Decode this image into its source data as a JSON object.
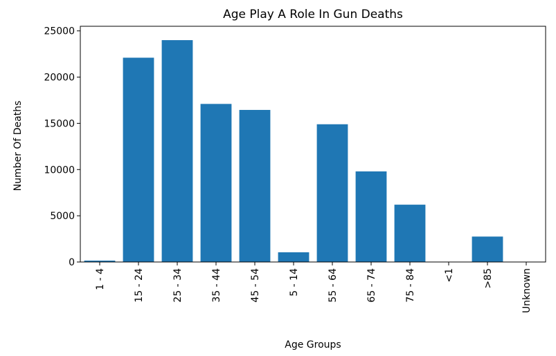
{
  "chart_data": {
    "type": "bar",
    "title": "Age Play A Role In Gun Deaths",
    "xlabel": "Age Groups",
    "ylabel": "Number Of Deaths",
    "categories": [
      "1 - 4",
      "15 - 24",
      "25 - 34",
      "35 - 44",
      "45 - 54",
      "5 - 14",
      "55 - 64",
      "65 - 74",
      "75 - 84",
      "<1",
      ">85",
      "Unknown"
    ],
    "values": [
      150,
      22100,
      24000,
      17100,
      16450,
      1050,
      14900,
      9800,
      6200,
      20,
      2750,
      5
    ],
    "ylim": [
      0,
      25500
    ],
    "yticks": [
      0,
      5000,
      10000,
      15000,
      20000,
      25000
    ],
    "grid": false,
    "legend": "none",
    "bar_color": "#1f77b4"
  }
}
